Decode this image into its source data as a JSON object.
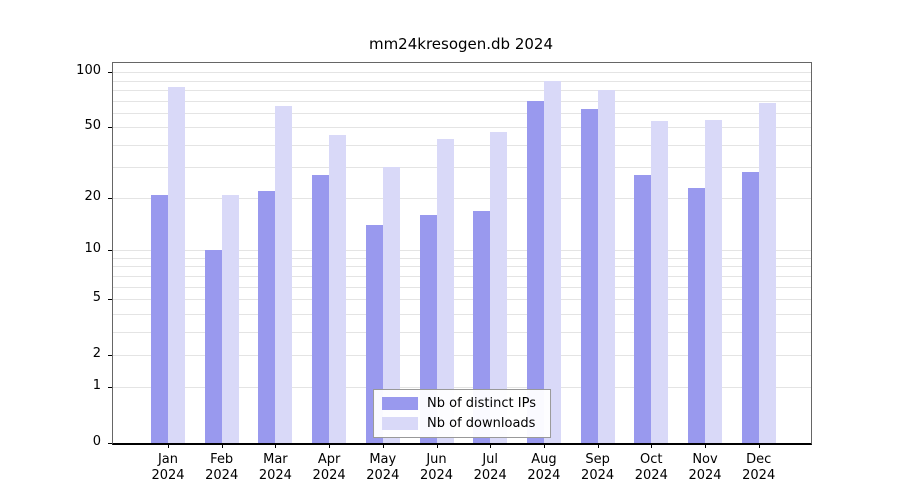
{
  "title": "mm24kresogen.db 2024",
  "chart_data": {
    "type": "bar",
    "title": "mm24kresogen.db 2024",
    "categories": [
      "Jan",
      "Feb",
      "Mar",
      "Apr",
      "May",
      "Jun",
      "Jul",
      "Aug",
      "Sep",
      "Oct",
      "Nov",
      "Dec"
    ],
    "year": "2024",
    "series": [
      {
        "name": "Nb of distinct IPs",
        "color": "#9999ee",
        "values": [
          21,
          10,
          22,
          27,
          14,
          16,
          17,
          70,
          63,
          27,
          23,
          28
        ]
      },
      {
        "name": "Nb of downloads",
        "color": "#d9d9f8",
        "values": [
          83,
          21,
          65,
          45,
          30,
          43,
          47,
          90,
          80,
          54,
          55,
          68
        ]
      }
    ],
    "yticks": [
      0,
      1,
      2,
      5,
      10,
      20,
      50,
      100
    ],
    "gridlines": [
      1,
      2,
      3,
      4,
      5,
      6,
      7,
      8,
      9,
      10,
      20,
      30,
      40,
      50,
      60,
      70,
      80,
      90,
      100
    ],
    "ylim": [
      0,
      100
    ],
    "yscale": "log(1+v)",
    "grid": "horizontal",
    "legend_position": "bottom-center",
    "gridline_color": "#e4e4e4",
    "axis_color": "#000000"
  }
}
